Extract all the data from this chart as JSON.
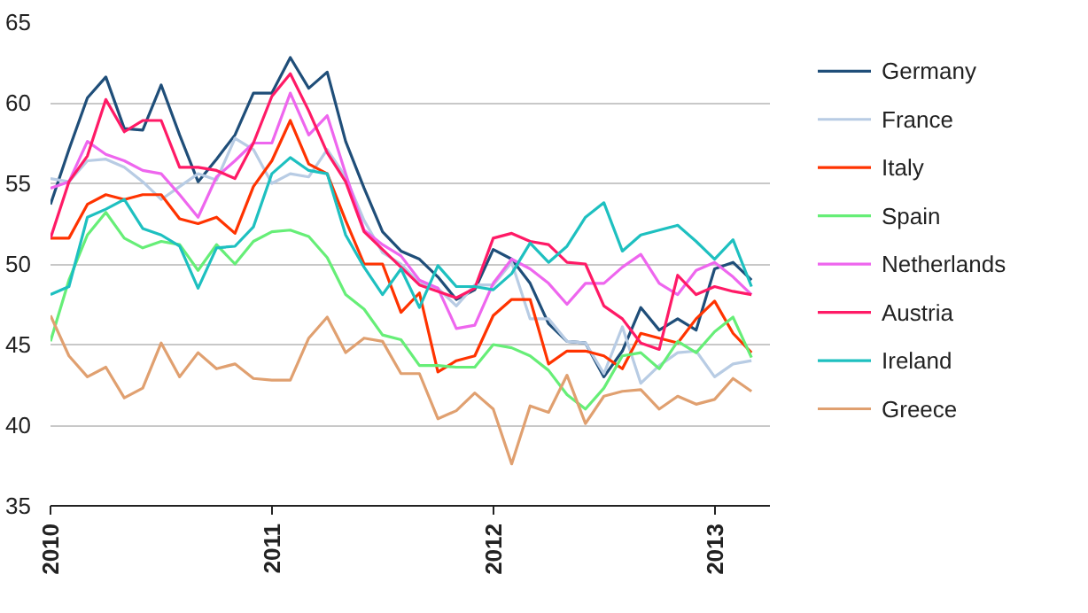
{
  "chart_data": {
    "type": "line",
    "x": [
      "2010-01",
      "2010-02",
      "2010-03",
      "2010-04",
      "2010-05",
      "2010-06",
      "2010-07",
      "2010-08",
      "2010-09",
      "2010-10",
      "2010-11",
      "2010-12",
      "2011-01",
      "2011-02",
      "2011-03",
      "2011-04",
      "2011-05",
      "2011-06",
      "2011-07",
      "2011-08",
      "2011-09",
      "2011-10",
      "2011-11",
      "2011-12",
      "2012-01",
      "2012-02",
      "2012-03",
      "2012-04",
      "2012-05",
      "2012-06",
      "2012-07",
      "2012-08",
      "2012-09",
      "2012-10",
      "2012-11",
      "2012-12",
      "2013-01",
      "2013-02",
      "2013-03"
    ],
    "series": [
      {
        "name": "Germany",
        "color": "#1f4e79",
        "values": [
          53.7,
          57.1,
          60.3,
          61.6,
          58.4,
          58.3,
          61.1,
          58.0,
          55.1,
          56.5,
          58.0,
          60.6,
          60.6,
          62.8,
          60.9,
          61.9,
          57.6,
          54.7,
          52.0,
          50.8,
          50.3,
          49.2,
          47.8,
          48.4,
          50.9,
          50.3,
          48.8,
          46.3,
          45.2,
          45.1,
          43.0,
          44.6,
          47.3,
          45.9,
          46.6,
          45.9,
          49.7,
          50.1,
          49.0
        ]
      },
      {
        "name": "France",
        "color": "#b8cce4",
        "values": [
          55.3,
          55.1,
          56.4,
          56.5,
          56.0,
          55.1,
          54.0,
          54.8,
          55.6,
          55.2,
          57.8,
          57.1,
          55.0,
          55.6,
          55.4,
          57.1,
          55.4,
          52.7,
          50.7,
          50.0,
          48.8,
          48.5,
          47.4,
          48.7,
          48.7,
          50.1,
          46.6,
          46.6,
          45.2,
          45.1,
          43.2,
          46.1,
          42.6,
          43.7,
          44.5,
          44.6,
          43.0,
          43.8,
          44.0
        ]
      },
      {
        "name": "Italy",
        "color": "#ff3300",
        "values": [
          51.6,
          51.6,
          53.7,
          54.3,
          54.0,
          54.3,
          54.3,
          52.8,
          52.5,
          52.9,
          51.9,
          54.8,
          56.4,
          58.9,
          56.2,
          55.6,
          52.7,
          50.0,
          50.0,
          47.0,
          48.2,
          43.3,
          44.0,
          44.3,
          46.8,
          47.8,
          47.8,
          43.8,
          44.6,
          44.6,
          44.3,
          43.5,
          45.7,
          45.4,
          45.1,
          46.6,
          47.7,
          45.7,
          44.5
        ]
      },
      {
        "name": "Spain",
        "color": "#66ee77",
        "values": [
          45.2,
          49.0,
          51.8,
          53.2,
          51.6,
          51.0,
          51.4,
          51.2,
          49.6,
          51.2,
          50.0,
          51.4,
          52.0,
          52.1,
          51.7,
          50.4,
          48.1,
          47.2,
          45.6,
          45.3,
          43.7,
          43.7,
          43.6,
          43.6,
          45.0,
          44.8,
          44.3,
          43.4,
          41.9,
          41.0,
          42.3,
          44.3,
          44.5,
          43.5,
          45.2,
          44.5,
          45.8,
          46.7,
          44.2
        ]
      },
      {
        "name": "Netherlands",
        "color": "#ee66ee",
        "values": [
          54.7,
          55.1,
          57.6,
          56.8,
          56.4,
          55.8,
          55.6,
          54.3,
          52.9,
          55.4,
          56.4,
          57.5,
          57.5,
          60.6,
          58.0,
          59.2,
          55.6,
          52.1,
          51.2,
          50.5,
          49.0,
          48.5,
          46.0,
          46.2,
          48.8,
          50.3,
          49.7,
          48.8,
          47.5,
          48.8,
          48.8,
          49.8,
          50.6,
          48.8,
          48.1,
          49.6,
          50.1,
          49.2,
          48.1
        ]
      },
      {
        "name": "Austria",
        "color": "#ff1a66",
        "values": [
          51.6,
          55.1,
          56.7,
          60.2,
          58.2,
          58.9,
          58.9,
          56.0,
          56.0,
          55.8,
          55.3,
          57.5,
          60.4,
          61.8,
          59.5,
          56.9,
          55.1,
          52.0,
          50.9,
          49.8,
          48.7,
          48.3,
          47.9,
          48.5,
          51.6,
          51.9,
          51.4,
          51.2,
          50.1,
          50.0,
          47.4,
          46.6,
          45.1,
          44.7,
          49.3,
          48.1,
          48.6,
          48.3,
          48.1
        ]
      },
      {
        "name": "Ireland",
        "color": "#1ec0c0",
        "values": [
          48.1,
          48.6,
          52.9,
          53.4,
          54.0,
          52.2,
          51.8,
          51.1,
          48.5,
          51.0,
          51.1,
          52.3,
          55.6,
          56.6,
          55.8,
          55.6,
          51.8,
          49.8,
          48.1,
          49.7,
          47.3,
          49.9,
          48.6,
          48.6,
          48.4,
          49.4,
          51.3,
          50.1,
          51.1,
          52.9,
          53.8,
          50.8,
          51.8,
          52.1,
          52.4,
          51.4,
          50.3,
          51.5,
          48.6
        ]
      },
      {
        "name": "Greece",
        "color": "#e0a070",
        "values": [
          46.8,
          44.3,
          43.0,
          43.6,
          41.7,
          42.3,
          45.1,
          43.0,
          44.5,
          43.5,
          43.8,
          42.9,
          42.8,
          42.8,
          45.4,
          46.7,
          44.5,
          45.4,
          45.2,
          43.2,
          43.2,
          40.4,
          40.9,
          42.0,
          41.0,
          37.6,
          41.2,
          40.8,
          43.1,
          40.1,
          41.8,
          42.1,
          42.2,
          41.0,
          41.8,
          41.3,
          41.6,
          42.9,
          42.1
        ]
      }
    ],
    "xlim": [
      "2010-01",
      "2013-04"
    ],
    "xticks": [
      "2010",
      "2011",
      "2012",
      "2013"
    ],
    "ylim": [
      35,
      65
    ],
    "yticks": [
      35,
      40,
      45,
      50,
      55,
      60,
      65
    ],
    "grid": "y",
    "legend": "right",
    "line_style": "solid"
  }
}
